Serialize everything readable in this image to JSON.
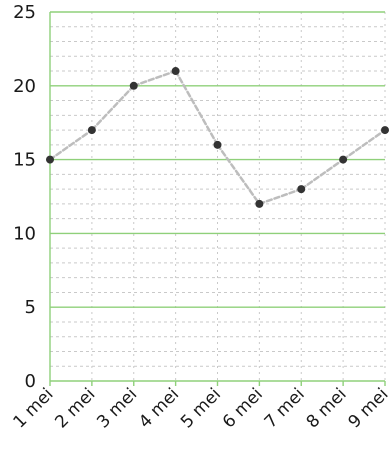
{
  "chart_data": {
    "type": "line",
    "title": "",
    "xlabel": "",
    "ylabel": "",
    "categories": [
      "1 mei",
      "2 mei",
      "3 mei",
      "4 mei",
      "5 mei",
      "6 mei",
      "7 mei",
      "8 mei",
      "9 mei"
    ],
    "values": [
      15,
      17,
      20,
      21,
      16,
      12,
      13,
      15,
      17
    ],
    "ylim": [
      0,
      25
    ],
    "y_ticks": [
      0,
      5,
      10,
      15,
      20,
      25
    ],
    "y_tick_labels": [
      "0",
      "5",
      "10",
      "15",
      "20",
      "25"
    ],
    "grid": true,
    "legend": "none",
    "colors": {
      "major_grid": "#8fd07a",
      "minor_grid": "#c9c9c9",
      "line": "#bdbdbd",
      "marker": "#333333",
      "text": "#1a1a1a"
    }
  }
}
